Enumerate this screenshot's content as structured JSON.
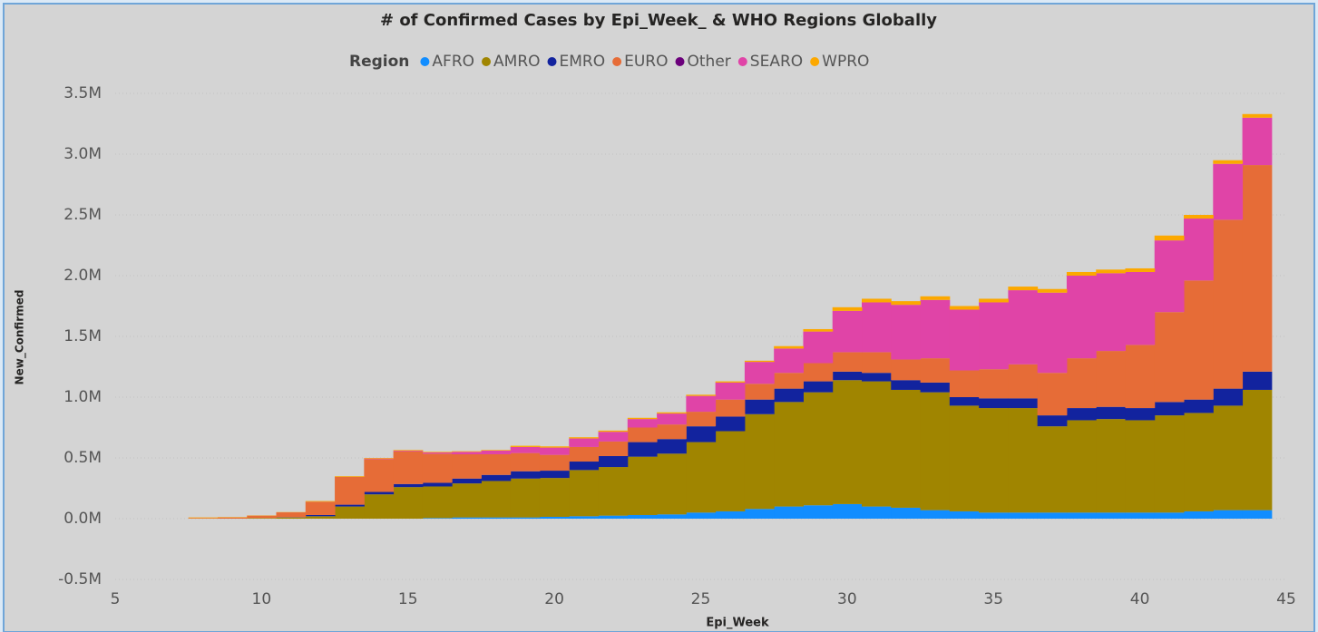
{
  "chart_data": {
    "type": "stacked-step-area",
    "title": "# of Confirmed Cases by Epi_Week_ & WHO Regions Globally",
    "legend_title": "Region",
    "x_label": "Epi_Week",
    "y_label": "New_Confirmed",
    "x": [
      8,
      9,
      10,
      11,
      12,
      13,
      14,
      15,
      16,
      17,
      18,
      19,
      20,
      21,
      22,
      23,
      24,
      25,
      26,
      27,
      28,
      29,
      30,
      31,
      32,
      33,
      34,
      35,
      36,
      37,
      38,
      39,
      40,
      41,
      42,
      43,
      44
    ],
    "xlim": [
      5,
      45
    ],
    "xticks": [
      5,
      10,
      15,
      20,
      25,
      30,
      35,
      40,
      45
    ],
    "ylim": [
      -500000,
      3500000
    ],
    "yticks": [
      {
        "value": -500000,
        "label": "-0.5M"
      },
      {
        "value": 0,
        "label": "0.0M"
      },
      {
        "value": 500000,
        "label": "0.5M"
      },
      {
        "value": 1000000,
        "label": "1.0M"
      },
      {
        "value": 1500000,
        "label": "1.5M"
      },
      {
        "value": 2000000,
        "label": "2.0M"
      },
      {
        "value": 2500000,
        "label": "2.5M"
      },
      {
        "value": 3000000,
        "label": "3.0M"
      },
      {
        "value": 3500000,
        "label": "3.5M"
      }
    ],
    "grid": true,
    "series": [
      {
        "name": "AFRO",
        "color": "#118dff",
        "values": [
          0,
          0,
          0,
          0,
          0,
          0,
          0,
          0,
          5000,
          10000,
          10000,
          10000,
          15000,
          20000,
          25000,
          30000,
          35000,
          50000,
          60000,
          80000,
          100000,
          110000,
          120000,
          100000,
          90000,
          70000,
          60000,
          50000,
          50000,
          50000,
          50000,
          50000,
          50000,
          50000,
          60000,
          70000,
          70000
        ]
      },
      {
        "name": "AMRO",
        "color": "#a08500",
        "values": [
          0,
          0,
          5000,
          10000,
          20000,
          100000,
          200000,
          260000,
          260000,
          280000,
          300000,
          320000,
          320000,
          380000,
          400000,
          480000,
          500000,
          580000,
          660000,
          780000,
          860000,
          930000,
          1020000,
          1030000,
          970000,
          970000,
          870000,
          860000,
          860000,
          710000,
          760000,
          770000,
          760000,
          800000,
          810000,
          860000,
          990000
        ]
      },
      {
        "name": "EMRO",
        "color": "#12239e",
        "values": [
          0,
          0,
          0,
          2000,
          10000,
          15000,
          20000,
          25000,
          30000,
          40000,
          50000,
          60000,
          60000,
          70000,
          90000,
          120000,
          120000,
          130000,
          120000,
          120000,
          110000,
          90000,
          70000,
          70000,
          80000,
          80000,
          70000,
          80000,
          80000,
          90000,
          100000,
          100000,
          100000,
          110000,
          110000,
          140000,
          150000
        ]
      },
      {
        "name": "EURO",
        "color": "#e66c37",
        "values": [
          5000,
          10000,
          20000,
          40000,
          110000,
          230000,
          270000,
          270000,
          240000,
          200000,
          170000,
          150000,
          130000,
          120000,
          120000,
          120000,
          120000,
          120000,
          140000,
          130000,
          130000,
          150000,
          160000,
          170000,
          170000,
          200000,
          220000,
          240000,
          280000,
          350000,
          410000,
          460000,
          520000,
          740000,
          980000,
          1390000,
          1700000
        ]
      },
      {
        "name": "Other",
        "color": "#6b007b",
        "values": [
          0,
          0,
          0,
          0,
          0,
          0,
          0,
          0,
          0,
          0,
          0,
          0,
          0,
          0,
          0,
          0,
          0,
          0,
          0,
          0,
          0,
          0,
          0,
          0,
          0,
          0,
          0,
          0,
          0,
          0,
          0,
          0,
          0,
          0,
          0,
          0,
          0
        ]
      },
      {
        "name": "SEARO",
        "color": "#e044a7",
        "values": [
          0,
          0,
          0,
          0,
          0,
          0,
          5000,
          5000,
          10000,
          20000,
          30000,
          50000,
          60000,
          70000,
          80000,
          70000,
          90000,
          130000,
          140000,
          180000,
          200000,
          260000,
          340000,
          410000,
          450000,
          480000,
          500000,
          550000,
          610000,
          660000,
          680000,
          640000,
          600000,
          590000,
          510000,
          460000,
          390000
        ]
      },
      {
        "name": "WPRO",
        "color": "#fca800",
        "values": [
          5000,
          3000,
          2000,
          2000,
          5000,
          5000,
          5000,
          5000,
          5000,
          5000,
          5000,
          10000,
          10000,
          10000,
          10000,
          10000,
          10000,
          10000,
          10000,
          10000,
          20000,
          20000,
          30000,
          30000,
          30000,
          30000,
          30000,
          30000,
          30000,
          30000,
          30000,
          30000,
          30000,
          40000,
          30000,
          30000,
          30000
        ]
      }
    ]
  }
}
